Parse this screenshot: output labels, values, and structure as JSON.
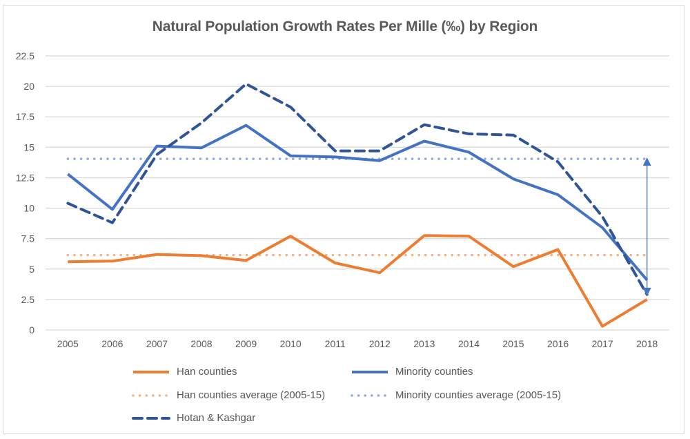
{
  "chart_data": {
    "type": "line",
    "title": "Natural Population Growth Rates Per Mille (‰) by Region",
    "xlabel": "",
    "ylabel": "",
    "categories": [
      "2005",
      "2006",
      "2007",
      "2008",
      "2009",
      "2010",
      "2011",
      "2012",
      "2013",
      "2014",
      "2015",
      "2016",
      "2017",
      "2018"
    ],
    "ylim": [
      0,
      22.5
    ],
    "yticks": [
      "0",
      "2.5",
      "5",
      "7.5",
      "10",
      "12.5",
      "15",
      "17.5",
      "20",
      "22.5"
    ],
    "grid": true,
    "legend_position": "bottom",
    "series": [
      {
        "name": "Han counties",
        "style": "solid",
        "color": "#ed7d31",
        "values": [
          5.6,
          5.65,
          6.2,
          6.1,
          5.7,
          7.7,
          5.5,
          4.7,
          7.75,
          7.7,
          5.2,
          6.6,
          0.3,
          2.5
        ]
      },
      {
        "name": "Minority counties",
        "style": "solid",
        "color": "#4472c4",
        "values": [
          12.8,
          9.9,
          15.1,
          14.95,
          16.8,
          14.3,
          14.2,
          13.9,
          15.5,
          14.6,
          12.4,
          11.1,
          8.4,
          4.1
        ]
      },
      {
        "name": "Han counties average (2005-15)",
        "style": "dotted",
        "color": "#f4b183",
        "values": [
          6.15,
          6.15,
          6.15,
          6.15,
          6.15,
          6.15,
          6.15,
          6.15,
          6.15,
          6.15,
          6.15,
          6.15,
          6.15,
          6.15
        ]
      },
      {
        "name": "Minority counties average (2005-15)",
        "style": "dotted",
        "color": "#8faadc",
        "values": [
          14.05,
          14.05,
          14.05,
          14.05,
          14.05,
          14.05,
          14.05,
          14.05,
          14.05,
          14.05,
          14.05,
          14.05,
          14.05,
          14.05
        ]
      },
      {
        "name": "Hotan & Kashgar",
        "style": "dashed",
        "color": "#2f5597",
        "values": [
          10.4,
          8.8,
          14.4,
          17.0,
          20.2,
          18.3,
          14.7,
          14.7,
          16.85,
          16.1,
          16.0,
          13.8,
          9.3,
          2.9
        ]
      }
    ],
    "annotations": [
      {
        "type": "double-arrow",
        "x": "2018",
        "from": 14.05,
        "to": 2.9,
        "color": "#4472c4"
      }
    ]
  }
}
